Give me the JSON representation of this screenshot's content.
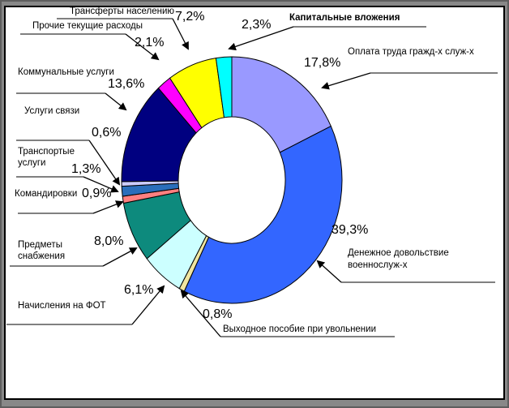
{
  "frame": {
    "outer_bg": "#868686",
    "panel_bg": "#ffffff",
    "panel_border": "#000000",
    "leader_line_color": "#808080",
    "arrow_color": "#000000"
  },
  "chart_data": {
    "type": "pie",
    "subtype": "donut",
    "units": "%",
    "start_angle_deg": 0,
    "direction": "clockwise",
    "legend": "none",
    "title": "",
    "slices": [
      {
        "label": "Оплата труда гражд-х служ-х",
        "value": 17.8,
        "display": "17,8%",
        "color": "#9999FF"
      },
      {
        "label": "Денежное довольствие военнослуж-х",
        "value": 39.3,
        "display": "39,3%",
        "color": "#3366FF"
      },
      {
        "label": "Выходное пособие при увольнении",
        "value": 0.8,
        "display": "0,8%",
        "color": "#F0E5A0"
      },
      {
        "label": "Начисления на ФОТ",
        "value": 6.1,
        "display": "6,1%",
        "color": "#CCFFFF"
      },
      {
        "label": "Предметы снабжения",
        "value": 8.0,
        "display": "8,0%",
        "color": "#0D8A7D"
      },
      {
        "label": "Командировки",
        "value": 0.9,
        "display": "0,9%",
        "color": "#FF8080"
      },
      {
        "label": "Транспортые услуги",
        "value": 1.3,
        "display": "1,3%",
        "color": "#2A6EBB"
      },
      {
        "label": "Услуги связи",
        "value": 0.6,
        "display": "0,6%",
        "color": "#CCCCFF"
      },
      {
        "label": "Коммунальные услуги",
        "value": 13.6,
        "display": "13,6%",
        "color": "#000080"
      },
      {
        "label": "Прочие текущие расходы",
        "value": 2.1,
        "display": "2,1%",
        "color": "#FF00FF"
      },
      {
        "label": "Трансферты населению",
        "value": 7.2,
        "display": "7,2%",
        "color": "#FFFF00"
      },
      {
        "label": "Капитальные вложения",
        "value": 2.3,
        "display": "2,3%",
        "color": "#00FFFF"
      }
    ]
  }
}
